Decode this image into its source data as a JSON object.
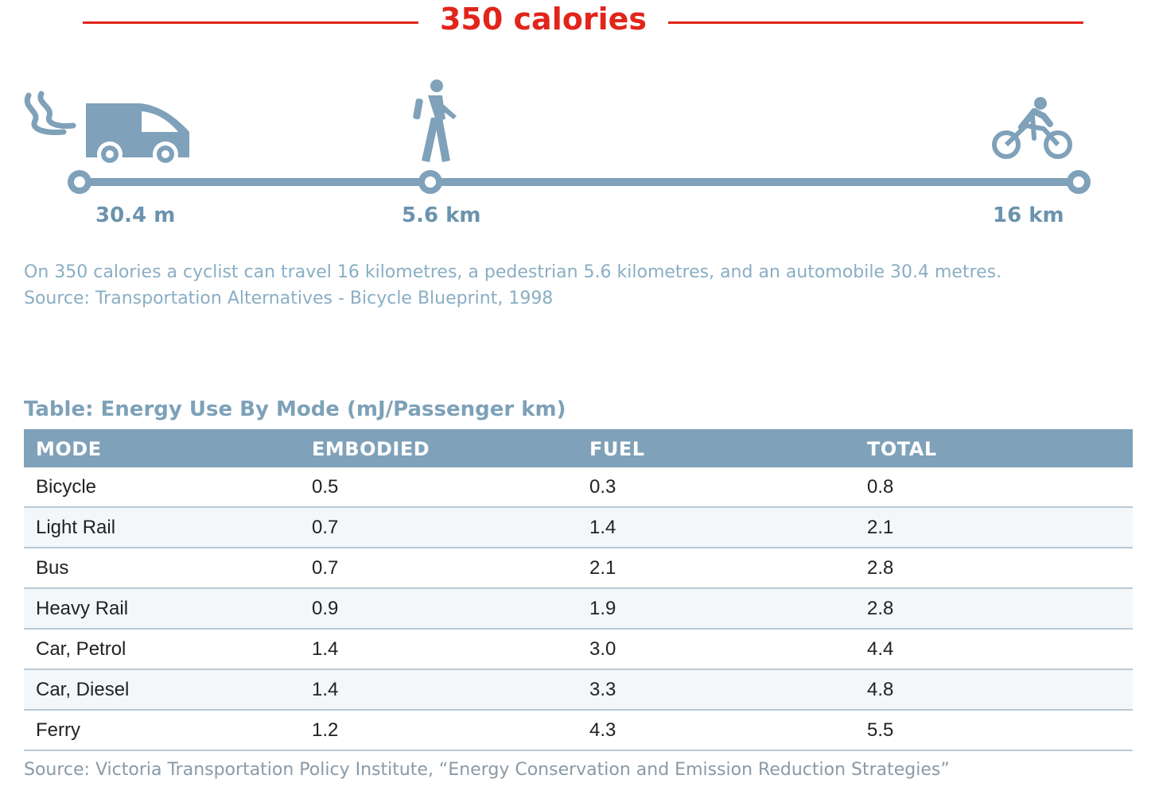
{
  "header": {
    "title": "350 calories"
  },
  "scale": {
    "markers": [
      {
        "mode": "automobile",
        "icon": "van-icon",
        "label": "30.4 m"
      },
      {
        "mode": "pedestrian",
        "icon": "walking-person-icon",
        "label": "5.6 km"
      },
      {
        "mode": "cyclist",
        "icon": "cyclist-icon",
        "label": "16 km"
      }
    ],
    "color": "#7fa1b9"
  },
  "caption": {
    "line1": "On 350 calories a cyclist can travel 16 kilometres, a pedestrian 5.6 kilometres, and an automobile 30.4 metres.",
    "line2": "Source: Transportation Alternatives - Bicycle Blueprint, 1998"
  },
  "table": {
    "title": "Table: Energy Use By Mode (mJ/Passenger km)",
    "headers": [
      "MODE",
      "EMBODIED",
      "FUEL",
      "TOTAL"
    ],
    "rows": [
      [
        "Bicycle",
        "0.5",
        "0.3",
        "0.8"
      ],
      [
        "Light Rail",
        "0.7",
        "1.4",
        "2.1"
      ],
      [
        "Bus",
        "0.7",
        "2.1",
        "2.8"
      ],
      [
        "Heavy Rail",
        "0.9",
        "1.9",
        "2.8"
      ],
      [
        "Car, Petrol",
        "1.4",
        "3.0",
        "4.4"
      ],
      [
        "Car, Diesel",
        "1.4",
        "3.3",
        "4.8"
      ],
      [
        "Ferry",
        "1.2",
        "4.3",
        "5.5"
      ]
    ],
    "source": "Source: Victoria Transportation Policy Institute, “Energy Conservation and Emission Reduction Strategies”"
  },
  "colors": {
    "accent_red": "#e1251b",
    "header_blue": "#7fa1b9",
    "label_blue": "#6b93ad"
  }
}
